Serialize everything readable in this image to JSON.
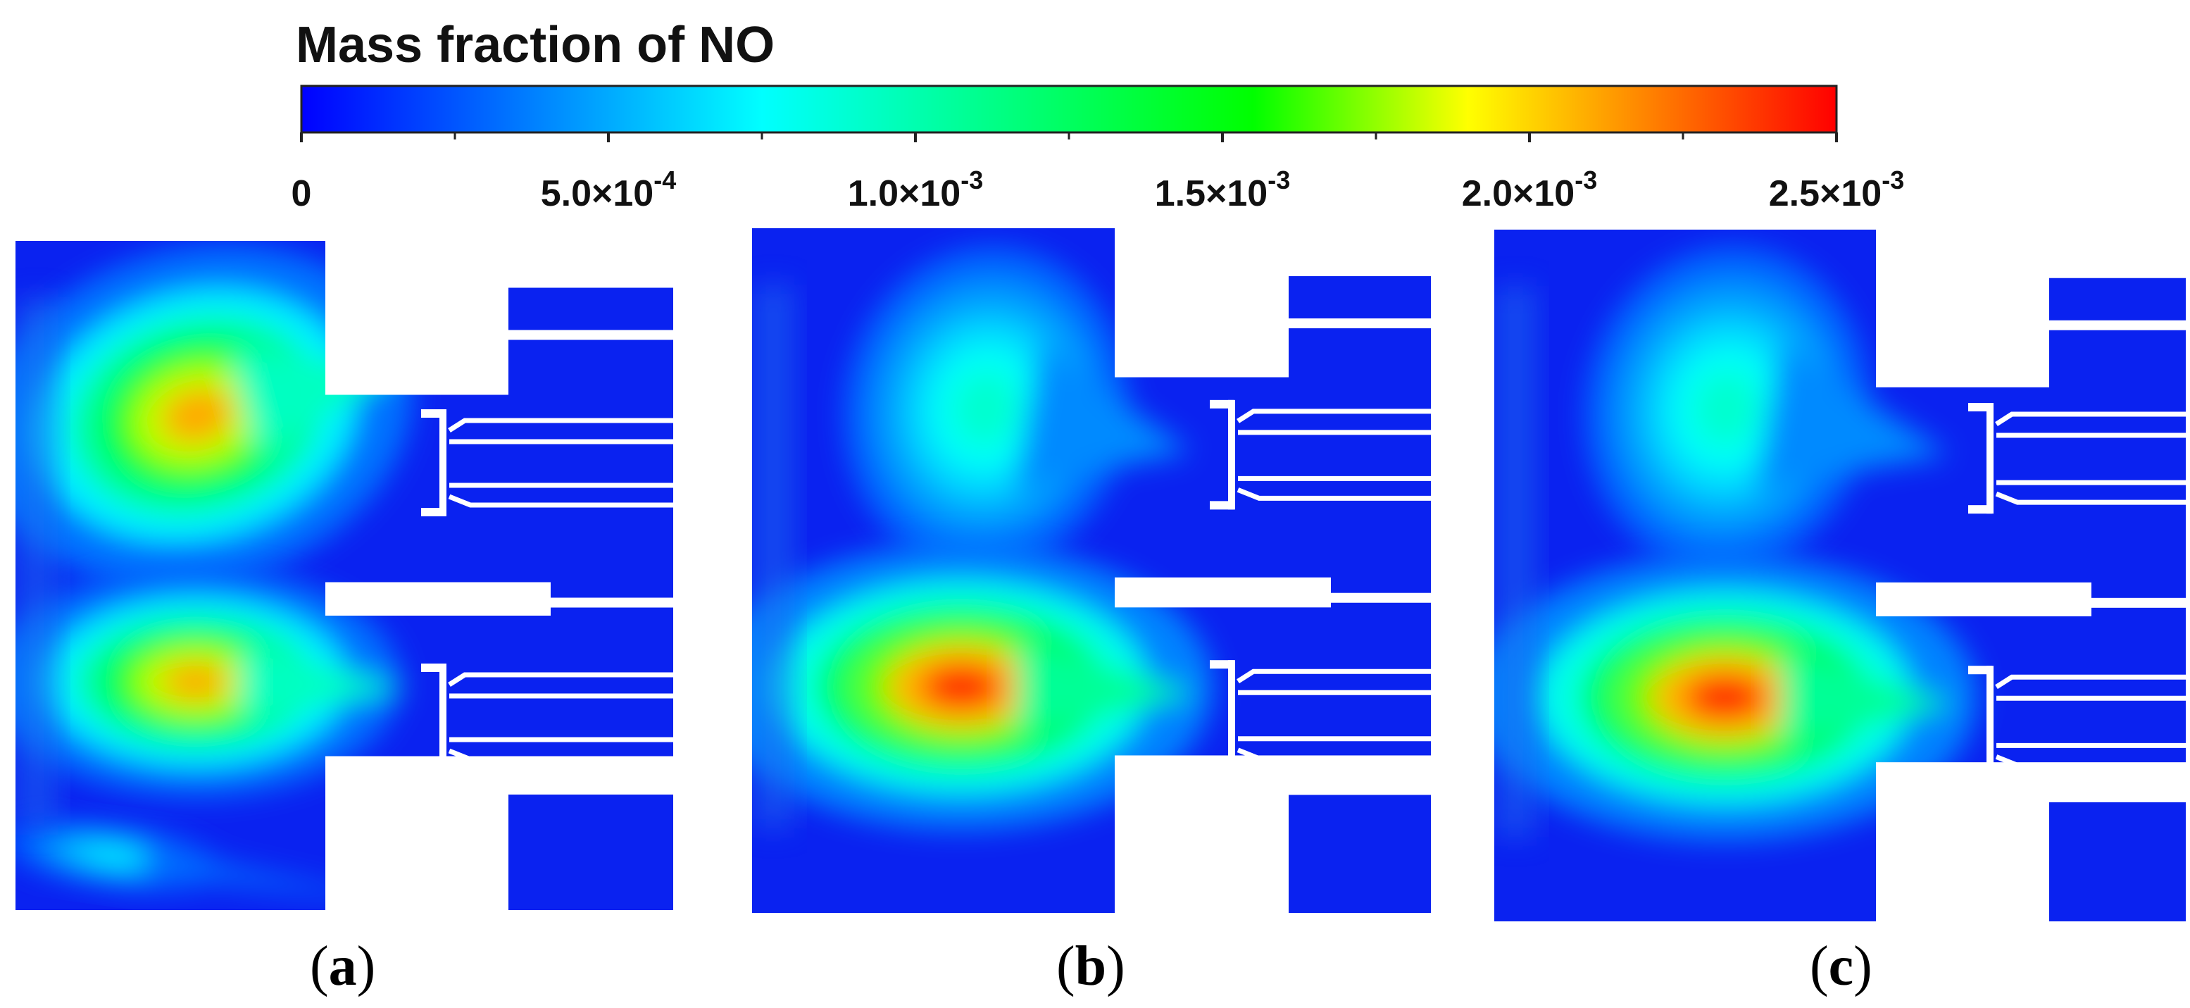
{
  "chart_data": {
    "type": "heatmap",
    "title": "Mass fraction of NO",
    "colorbar": {
      "min": 0,
      "max": 0.0025,
      "ticks": [
        {
          "value": 0,
          "label": "0"
        },
        {
          "value": 0.0005,
          "label": "5.0×10",
          "exp": "-4"
        },
        {
          "value": 0.001,
          "label": "1.0×10",
          "exp": "-3"
        },
        {
          "value": 0.0015,
          "label": "1.5×10",
          "exp": "-3"
        },
        {
          "value": 0.002,
          "label": "2.0×10",
          "exp": "-3"
        },
        {
          "value": 0.0025,
          "label": "2.5×10",
          "exp": "-3"
        }
      ],
      "minor_ticks": [
        0.00025,
        0.00075,
        0.00125,
        0.00175,
        0.00225
      ],
      "colormap": [
        "#0000ff",
        "#00ffff",
        "#00ff00",
        "#ffff00",
        "#ff0000"
      ]
    },
    "panels": [
      {
        "label": "a",
        "hotspots": [
          {
            "name": "upper",
            "peak": 0.0021
          },
          {
            "name": "lower",
            "peak": 0.0021
          },
          {
            "name": "bottom",
            "peak": 0.0007
          }
        ]
      },
      {
        "label": "b",
        "hotspots": [
          {
            "name": "upper",
            "peak": 0.0009
          },
          {
            "name": "lower",
            "peak": 0.0024
          }
        ]
      },
      {
        "label": "c",
        "hotspots": [
          {
            "name": "upper",
            "peak": 0.0009
          },
          {
            "name": "lower",
            "peak": 0.0024
          }
        ]
      }
    ]
  }
}
